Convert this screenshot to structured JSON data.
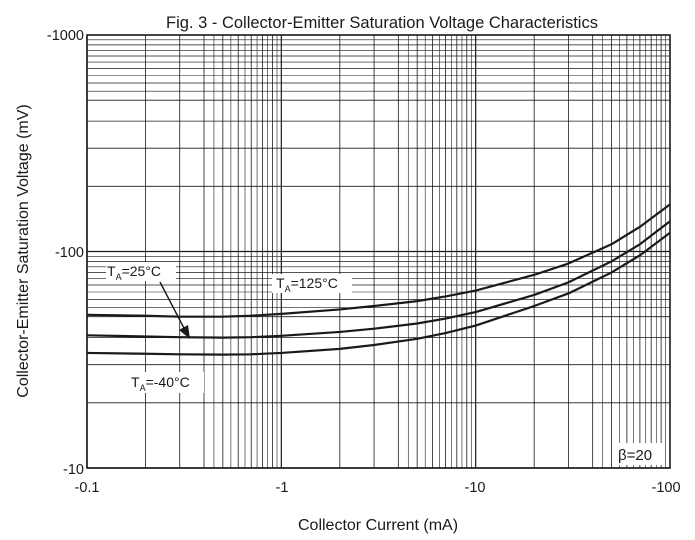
{
  "chart_data": {
    "type": "line",
    "title": "Fig. 3 - Collector-Emitter Saturation Voltage Characteristics",
    "xlabel": "Collector Current (mA)",
    "ylabel": "Collector-Emitter Saturation Voltage (mV)",
    "x_scale": "log",
    "y_scale": "log",
    "xlim": [
      -0.1,
      -100
    ],
    "ylim": [
      -10,
      -1000
    ],
    "grid": true,
    "x_tick_labels": [
      "-0.1",
      "-1",
      "-10",
      "-100"
    ],
    "y_tick_labels": [
      "-10",
      "-100",
      "-1000"
    ],
    "annotations": [
      {
        "text": "β=20"
      }
    ],
    "series": [
      {
        "name": "TA=125°C",
        "label_main": "T",
        "label_sub": "A",
        "label_rest": "=125°C",
        "x": [
          -0.1,
          -0.2,
          -0.3,
          -0.5,
          -0.7,
          -1,
          -2,
          -3,
          -5,
          -7,
          -10,
          -20,
          -30,
          -50,
          -70,
          -100
        ],
        "y": [
          -51,
          -50.5,
          -50,
          -50,
          -50.5,
          -51.5,
          -54,
          -56,
          -59,
          -62,
          -66,
          -78,
          -88,
          -108,
          -130,
          -165
        ]
      },
      {
        "name": "TA=25°C",
        "label_main": "T",
        "label_sub": "A",
        "label_rest": "=25°C",
        "x": [
          -0.1,
          -0.2,
          -0.3,
          -0.5,
          -0.7,
          -1,
          -2,
          -3,
          -5,
          -7,
          -10,
          -20,
          -30,
          -50,
          -70,
          -100
        ],
        "y": [
          -41,
          -40.5,
          -40.2,
          -40,
          -40.2,
          -40.8,
          -42.5,
          -44,
          -46.5,
          -49,
          -52.5,
          -63,
          -72,
          -90,
          -108,
          -138
        ]
      },
      {
        "name": "TA=-40°C",
        "label_main": "T",
        "label_sub": "A",
        "label_rest": "=-40°C",
        "x": [
          -0.1,
          -0.2,
          -0.3,
          -0.5,
          -0.7,
          -1,
          -2,
          -3,
          -5,
          -7,
          -10,
          -20,
          -30,
          -50,
          -70,
          -100
        ],
        "y": [
          -34,
          -33.7,
          -33.5,
          -33.4,
          -33.5,
          -34,
          -35.5,
          -37,
          -39.5,
          -42,
          -45.5,
          -56,
          -64,
          -80,
          -96,
          -122
        ]
      }
    ]
  }
}
